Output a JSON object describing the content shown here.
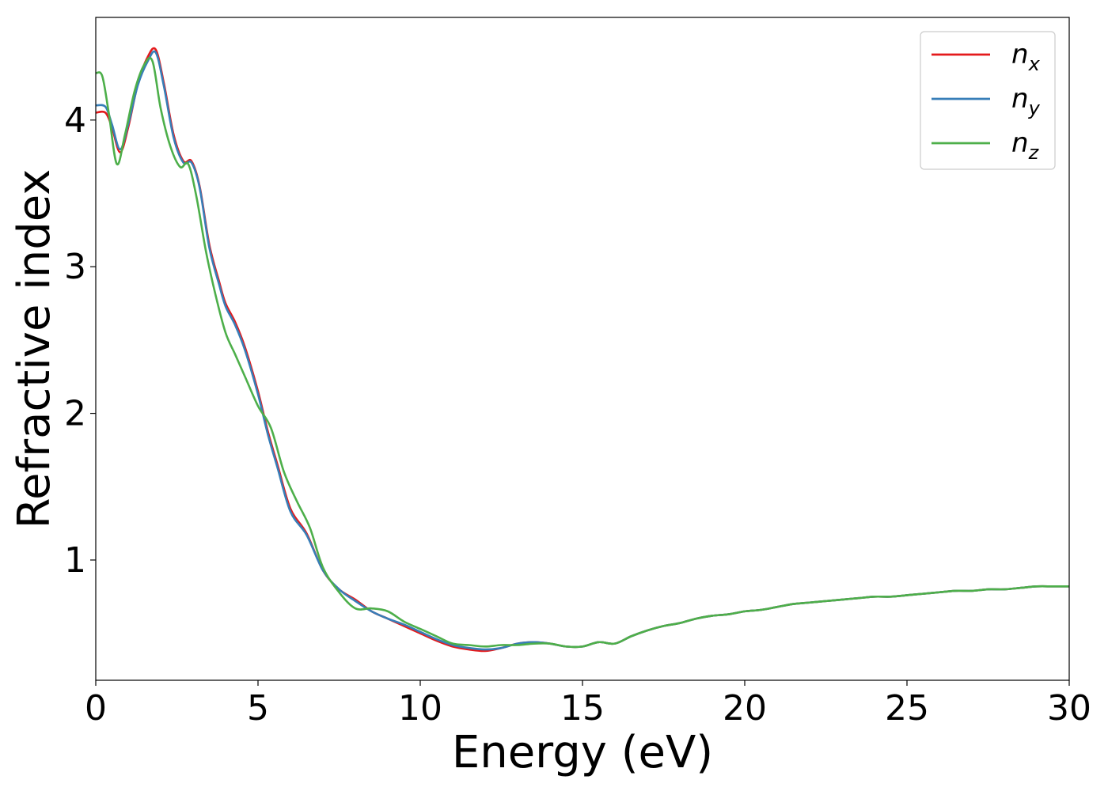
{
  "chart_data": {
    "type": "line",
    "title": "",
    "xlabel": "Energy (eV)",
    "ylabel": "Refractive index",
    "xlim": [
      0,
      30
    ],
    "ylim": [
      0.18,
      4.7
    ],
    "xticks": [
      0,
      5,
      10,
      15,
      20,
      25,
      30
    ],
    "yticks": [
      1,
      2,
      3,
      4
    ],
    "grid": false,
    "legend_position": "top-right",
    "series": [
      {
        "name": "n",
        "subscript": "x",
        "color": "#e41a1c",
        "x": [
          0,
          0.3,
          0.5,
          0.75,
          1.0,
          1.3,
          1.6,
          1.85,
          2.1,
          2.4,
          2.7,
          2.95,
          3.2,
          3.5,
          3.8,
          4.0,
          4.3,
          4.6,
          5.0,
          5.3,
          5.6,
          6.0,
          6.5,
          7.0,
          7.5,
          8.0,
          8.5,
          9.0,
          9.5,
          10.0,
          10.5,
          11.0,
          11.5,
          12.0,
          12.5,
          13.0,
          13.5,
          14.0,
          14.5,
          15.0,
          15.5,
          16.0,
          16.5,
          17.0,
          17.5,
          18.0,
          18.5,
          19.0,
          19.5,
          20.0,
          20.5,
          21.0,
          21.5,
          22.0,
          22.5,
          23.0,
          23.5,
          24.0,
          24.5,
          25.0,
          25.5,
          26.0,
          26.5,
          27.0,
          27.5,
          28.0,
          28.5,
          29.0,
          29.5,
          30.0
        ],
        "y": [
          4.05,
          4.05,
          3.95,
          3.78,
          3.95,
          4.25,
          4.43,
          4.48,
          4.25,
          3.9,
          3.72,
          3.72,
          3.55,
          3.15,
          2.9,
          2.75,
          2.62,
          2.45,
          2.15,
          1.88,
          1.65,
          1.35,
          1.18,
          0.93,
          0.8,
          0.73,
          0.65,
          0.6,
          0.55,
          0.5,
          0.45,
          0.41,
          0.39,
          0.38,
          0.4,
          0.43,
          0.44,
          0.43,
          0.41,
          0.41,
          0.44,
          0.43,
          0.48,
          0.52,
          0.55,
          0.57,
          0.6,
          0.62,
          0.63,
          0.65,
          0.66,
          0.68,
          0.7,
          0.71,
          0.72,
          0.73,
          0.74,
          0.75,
          0.75,
          0.76,
          0.77,
          0.78,
          0.79,
          0.79,
          0.8,
          0.8,
          0.81,
          0.82,
          0.82,
          0.82
        ]
      },
      {
        "name": "n",
        "subscript": "y",
        "color": "#377eb8",
        "x": [
          0,
          0.3,
          0.5,
          0.75,
          1.0,
          1.3,
          1.6,
          1.85,
          2.1,
          2.4,
          2.7,
          2.95,
          3.2,
          3.5,
          3.8,
          4.0,
          4.3,
          4.6,
          5.0,
          5.3,
          5.6,
          6.0,
          6.5,
          7.0,
          7.5,
          8.0,
          8.5,
          9.0,
          9.5,
          10.0,
          10.5,
          11.0,
          11.5,
          12.0,
          12.5,
          13.0,
          13.5,
          14.0,
          14.5,
          15.0,
          15.5,
          16.0,
          16.5,
          17.0,
          17.5,
          18.0,
          18.5,
          19.0,
          19.5,
          20.0,
          20.5,
          21.0,
          21.5,
          22.0,
          22.5,
          23.0,
          23.5,
          24.0,
          24.5,
          25.0,
          25.5,
          26.0,
          26.5,
          27.0,
          27.5,
          28.0,
          28.5,
          29.0,
          29.5,
          30.0
        ],
        "y": [
          4.1,
          4.09,
          3.97,
          3.8,
          3.97,
          4.24,
          4.4,
          4.46,
          4.23,
          3.88,
          3.71,
          3.71,
          3.54,
          3.13,
          2.88,
          2.73,
          2.6,
          2.43,
          2.13,
          1.86,
          1.63,
          1.33,
          1.17,
          0.93,
          0.8,
          0.72,
          0.65,
          0.6,
          0.56,
          0.51,
          0.46,
          0.42,
          0.4,
          0.39,
          0.4,
          0.43,
          0.44,
          0.43,
          0.41,
          0.41,
          0.44,
          0.43,
          0.48,
          0.52,
          0.55,
          0.57,
          0.6,
          0.62,
          0.63,
          0.65,
          0.66,
          0.68,
          0.7,
          0.71,
          0.72,
          0.73,
          0.74,
          0.75,
          0.75,
          0.76,
          0.77,
          0.78,
          0.79,
          0.79,
          0.8,
          0.8,
          0.81,
          0.82,
          0.82,
          0.82
        ]
      },
      {
        "name": "n",
        "subscript": "z",
        "color": "#4daf4a",
        "x": [
          0,
          0.2,
          0.4,
          0.65,
          0.9,
          1.2,
          1.5,
          1.75,
          2.0,
          2.3,
          2.6,
          2.85,
          3.1,
          3.4,
          3.7,
          4.0,
          4.3,
          4.6,
          5.0,
          5.4,
          5.8,
          6.2,
          6.6,
          7.0,
          7.5,
          8.0,
          8.5,
          9.0,
          9.5,
          10.0,
          10.5,
          11.0,
          11.5,
          12.0,
          12.5,
          13.0,
          13.5,
          14.0,
          14.5,
          15.0,
          15.5,
          16.0,
          16.5,
          17.0,
          17.5,
          18.0,
          18.5,
          19.0,
          19.5,
          20.0,
          20.5,
          21.0,
          21.5,
          22.0,
          22.5,
          23.0,
          23.5,
          24.0,
          24.5,
          25.0,
          25.5,
          26.0,
          26.5,
          27.0,
          27.5,
          28.0,
          28.5,
          29.0,
          29.5,
          30.0
        ],
        "y": [
          4.32,
          4.3,
          4.05,
          3.7,
          3.9,
          4.2,
          4.38,
          4.4,
          4.08,
          3.82,
          3.68,
          3.7,
          3.48,
          3.1,
          2.8,
          2.55,
          2.4,
          2.25,
          2.05,
          1.9,
          1.6,
          1.4,
          1.22,
          0.95,
          0.78,
          0.67,
          0.67,
          0.65,
          0.58,
          0.53,
          0.48,
          0.43,
          0.42,
          0.41,
          0.42,
          0.42,
          0.43,
          0.43,
          0.41,
          0.41,
          0.44,
          0.43,
          0.48,
          0.52,
          0.55,
          0.57,
          0.6,
          0.62,
          0.63,
          0.65,
          0.66,
          0.68,
          0.7,
          0.71,
          0.72,
          0.73,
          0.74,
          0.75,
          0.75,
          0.76,
          0.77,
          0.78,
          0.79,
          0.79,
          0.8,
          0.8,
          0.81,
          0.82,
          0.82,
          0.82
        ]
      }
    ]
  }
}
